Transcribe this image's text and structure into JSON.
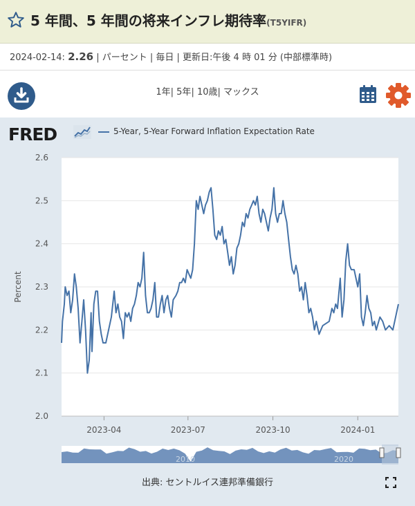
{
  "header": {
    "title": "5 年間、5 年間の将来インフレ期待率",
    "series_id": "(T5YIFR)"
  },
  "meta": {
    "date": "2024-02-14:",
    "value": "2.26",
    "rest": "| パーセント | 毎日 | 更新日:午後 4 時 01 分 (中部標準時)"
  },
  "toolbar": {
    "ranges": [
      "1年",
      "5年",
      "10歳",
      "マックス"
    ]
  },
  "fred": {
    "logo": "FRED",
    "legend": "5-Year, 5-Year Forward Inflation Expectation Rate"
  },
  "footer": {
    "source": "出典: セントルイス連邦準備銀行"
  },
  "colors": {
    "line": "#4572a7",
    "header_bg": "#eef0d8",
    "panel_bg": "#e1e9f0",
    "download": "#2f5b8b",
    "gear": "#e05a2b"
  },
  "chart_data": {
    "type": "line",
    "ylabel": "Percent",
    "ylim": [
      2.0,
      2.6
    ],
    "y_ticks": [
      "2.0",
      "2.1",
      "2.2",
      "2.3",
      "2.4",
      "2.5",
      "2.6"
    ],
    "x_ticks": [
      {
        "label": "2023-04",
        "date": "2023-04-01"
      },
      {
        "label": "2023-07",
        "date": "2023-07-01"
      },
      {
        "label": "2023-10",
        "date": "2023-10-01"
      },
      {
        "label": "2024-01",
        "date": "2024-01-01"
      }
    ],
    "xlim": [
      "2023-02-14",
      "2024-02-14"
    ],
    "grid": true,
    "series": [
      {
        "name": "5-Year, 5-Year Forward Inflation Expectation Rate",
        "points": [
          [
            "2023-02-14",
            2.17
          ],
          [
            "2023-02-15",
            2.22
          ],
          [
            "2023-02-17",
            2.26
          ],
          [
            "2023-02-18",
            2.3
          ],
          [
            "2023-02-20",
            2.28
          ],
          [
            "2023-02-22",
            2.29
          ],
          [
            "2023-02-24",
            2.24
          ],
          [
            "2023-02-26",
            2.27
          ],
          [
            "2023-02-28",
            2.33
          ],
          [
            "2023-03-02",
            2.3
          ],
          [
            "2023-03-04",
            2.25
          ],
          [
            "2023-03-06",
            2.17
          ],
          [
            "2023-03-08",
            2.22
          ],
          [
            "2023-03-10",
            2.27
          ],
          [
            "2023-03-12",
            2.2
          ],
          [
            "2023-03-14",
            2.1
          ],
          [
            "2023-03-16",
            2.13
          ],
          [
            "2023-03-18",
            2.24
          ],
          [
            "2023-03-19",
            2.15
          ],
          [
            "2023-03-21",
            2.26
          ],
          [
            "2023-03-23",
            2.29
          ],
          [
            "2023-03-25",
            2.29
          ],
          [
            "2023-03-27",
            2.22
          ],
          [
            "2023-03-29",
            2.19
          ],
          [
            "2023-03-31",
            2.17
          ],
          [
            "2023-04-03",
            2.17
          ],
          [
            "2023-04-06",
            2.2
          ],
          [
            "2023-04-09",
            2.23
          ],
          [
            "2023-04-12",
            2.29
          ],
          [
            "2023-04-14",
            2.24
          ],
          [
            "2023-04-16",
            2.26
          ],
          [
            "2023-04-18",
            2.23
          ],
          [
            "2023-04-20",
            2.22
          ],
          [
            "2023-04-22",
            2.18
          ],
          [
            "2023-04-24",
            2.24
          ],
          [
            "2023-04-26",
            2.23
          ],
          [
            "2023-04-28",
            2.24
          ],
          [
            "2023-04-30",
            2.22
          ],
          [
            "2023-05-02",
            2.25
          ],
          [
            "2023-05-04",
            2.26
          ],
          [
            "2023-05-06",
            2.28
          ],
          [
            "2023-05-08",
            2.31
          ],
          [
            "2023-05-10",
            2.3
          ],
          [
            "2023-05-12",
            2.32
          ],
          [
            "2023-05-14",
            2.38
          ],
          [
            "2023-05-16",
            2.28
          ],
          [
            "2023-05-18",
            2.24
          ],
          [
            "2023-05-20",
            2.24
          ],
          [
            "2023-05-22",
            2.25
          ],
          [
            "2023-05-24",
            2.27
          ],
          [
            "2023-05-26",
            2.31
          ],
          [
            "2023-05-28",
            2.23
          ],
          [
            "2023-05-30",
            2.23
          ],
          [
            "2023-06-01",
            2.26
          ],
          [
            "2023-06-03",
            2.28
          ],
          [
            "2023-06-05",
            2.24
          ],
          [
            "2023-06-07",
            2.27
          ],
          [
            "2023-06-09",
            2.28
          ],
          [
            "2023-06-11",
            2.25
          ],
          [
            "2023-06-13",
            2.23
          ],
          [
            "2023-06-15",
            2.27
          ],
          [
            "2023-06-18",
            2.28
          ],
          [
            "2023-06-20",
            2.29
          ],
          [
            "2023-06-22",
            2.31
          ],
          [
            "2023-06-24",
            2.31
          ],
          [
            "2023-06-26",
            2.32
          ],
          [
            "2023-06-28",
            2.31
          ],
          [
            "2023-06-30",
            2.34
          ],
          [
            "2023-07-02",
            2.33
          ],
          [
            "2023-07-04",
            2.32
          ],
          [
            "2023-07-06",
            2.34
          ],
          [
            "2023-07-08",
            2.4
          ],
          [
            "2023-07-10",
            2.5
          ],
          [
            "2023-07-12",
            2.48
          ],
          [
            "2023-07-14",
            2.51
          ],
          [
            "2023-07-16",
            2.49
          ],
          [
            "2023-07-18",
            2.47
          ],
          [
            "2023-07-20",
            2.49
          ],
          [
            "2023-07-22",
            2.5
          ],
          [
            "2023-07-24",
            2.52
          ],
          [
            "2023-07-26",
            2.53
          ],
          [
            "2023-07-28",
            2.48
          ],
          [
            "2023-07-30",
            2.42
          ],
          [
            "2023-08-01",
            2.41
          ],
          [
            "2023-08-03",
            2.43
          ],
          [
            "2023-08-05",
            2.42
          ],
          [
            "2023-08-07",
            2.44
          ],
          [
            "2023-08-09",
            2.4
          ],
          [
            "2023-08-11",
            2.41
          ],
          [
            "2023-08-13",
            2.38
          ],
          [
            "2023-08-15",
            2.35
          ],
          [
            "2023-08-17",
            2.37
          ],
          [
            "2023-08-19",
            2.33
          ],
          [
            "2023-08-21",
            2.35
          ],
          [
            "2023-08-23",
            2.39
          ],
          [
            "2023-08-25",
            2.4
          ],
          [
            "2023-08-27",
            2.42
          ],
          [
            "2023-08-29",
            2.45
          ],
          [
            "2023-08-31",
            2.44
          ],
          [
            "2023-09-02",
            2.47
          ],
          [
            "2023-09-04",
            2.46
          ],
          [
            "2023-09-06",
            2.48
          ],
          [
            "2023-09-08",
            2.49
          ],
          [
            "2023-09-10",
            2.5
          ],
          [
            "2023-09-12",
            2.49
          ],
          [
            "2023-09-14",
            2.51
          ],
          [
            "2023-09-16",
            2.47
          ],
          [
            "2023-09-18",
            2.45
          ],
          [
            "2023-09-20",
            2.48
          ],
          [
            "2023-09-22",
            2.47
          ],
          [
            "2023-09-24",
            2.45
          ],
          [
            "2023-09-26",
            2.43
          ],
          [
            "2023-09-28",
            2.46
          ],
          [
            "2023-09-30",
            2.48
          ],
          [
            "2023-10-02",
            2.53
          ],
          [
            "2023-10-04",
            2.47
          ],
          [
            "2023-10-06",
            2.45
          ],
          [
            "2023-10-08",
            2.47
          ],
          [
            "2023-10-10",
            2.47
          ],
          [
            "2023-10-12",
            2.5
          ],
          [
            "2023-10-14",
            2.47
          ],
          [
            "2023-10-16",
            2.45
          ],
          [
            "2023-10-18",
            2.41
          ],
          [
            "2023-10-20",
            2.37
          ],
          [
            "2023-10-22",
            2.34
          ],
          [
            "2023-10-24",
            2.33
          ],
          [
            "2023-10-26",
            2.35
          ],
          [
            "2023-10-28",
            2.33
          ],
          [
            "2023-10-30",
            2.29
          ],
          [
            "2023-11-01",
            2.3
          ],
          [
            "2023-11-03",
            2.27
          ],
          [
            "2023-11-05",
            2.31
          ],
          [
            "2023-11-07",
            2.28
          ],
          [
            "2023-11-09",
            2.24
          ],
          [
            "2023-11-11",
            2.25
          ],
          [
            "2023-11-13",
            2.23
          ],
          [
            "2023-11-15",
            2.2
          ],
          [
            "2023-11-17",
            2.22
          ],
          [
            "2023-11-20",
            2.19
          ],
          [
            "2023-11-22",
            2.2
          ],
          [
            "2023-11-24",
            2.21
          ],
          [
            "2023-12-01",
            2.22
          ],
          [
            "2023-12-04",
            2.25
          ],
          [
            "2023-12-06",
            2.24
          ],
          [
            "2023-12-08",
            2.26
          ],
          [
            "2023-12-10",
            2.25
          ],
          [
            "2023-12-13",
            2.32
          ],
          [
            "2023-12-15",
            2.23
          ],
          [
            "2023-12-17",
            2.27
          ],
          [
            "2023-12-19",
            2.36
          ],
          [
            "2023-12-21",
            2.4
          ],
          [
            "2023-12-23",
            2.35
          ],
          [
            "2023-12-25",
            2.34
          ],
          [
            "2023-12-28",
            2.34
          ],
          [
            "2024-01-01",
            2.3
          ],
          [
            "2024-01-03",
            2.33
          ],
          [
            "2024-01-05",
            2.23
          ],
          [
            "2024-01-07",
            2.21
          ],
          [
            "2024-01-09",
            2.24
          ],
          [
            "2024-01-11",
            2.28
          ],
          [
            "2024-01-13",
            2.25
          ],
          [
            "2024-01-15",
            2.24
          ],
          [
            "2024-01-17",
            2.21
          ],
          [
            "2024-01-19",
            2.22
          ],
          [
            "2024-01-21",
            2.2
          ],
          [
            "2024-01-25",
            2.23
          ],
          [
            "2024-01-28",
            2.22
          ],
          [
            "2024-01-31",
            2.2
          ],
          [
            "2024-02-04",
            2.21
          ],
          [
            "2024-02-08",
            2.2
          ],
          [
            "2024-02-12",
            2.24
          ],
          [
            "2024-02-14",
            2.26
          ]
        ]
      }
    ],
    "navigator": {
      "x_labels": [
        "2010",
        "2020"
      ]
    }
  }
}
